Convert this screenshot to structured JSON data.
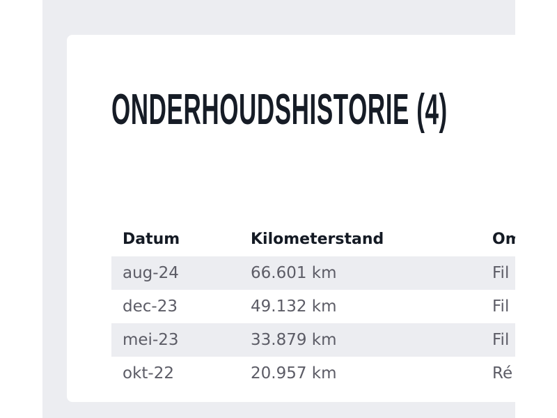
{
  "title": "ONDERHOUDSHISTORIE (4)",
  "table": {
    "headers": [
      "Datum",
      "Kilometerstand",
      "Om"
    ],
    "rows": [
      [
        "aug-24",
        "66.601 km",
        "Fil"
      ],
      [
        "dec-23",
        "49.132 km",
        "Fil"
      ],
      [
        "mei-23",
        "33.879 km",
        "Fil"
      ],
      [
        "okt-22",
        "20.957 km",
        "Ré"
      ]
    ]
  }
}
